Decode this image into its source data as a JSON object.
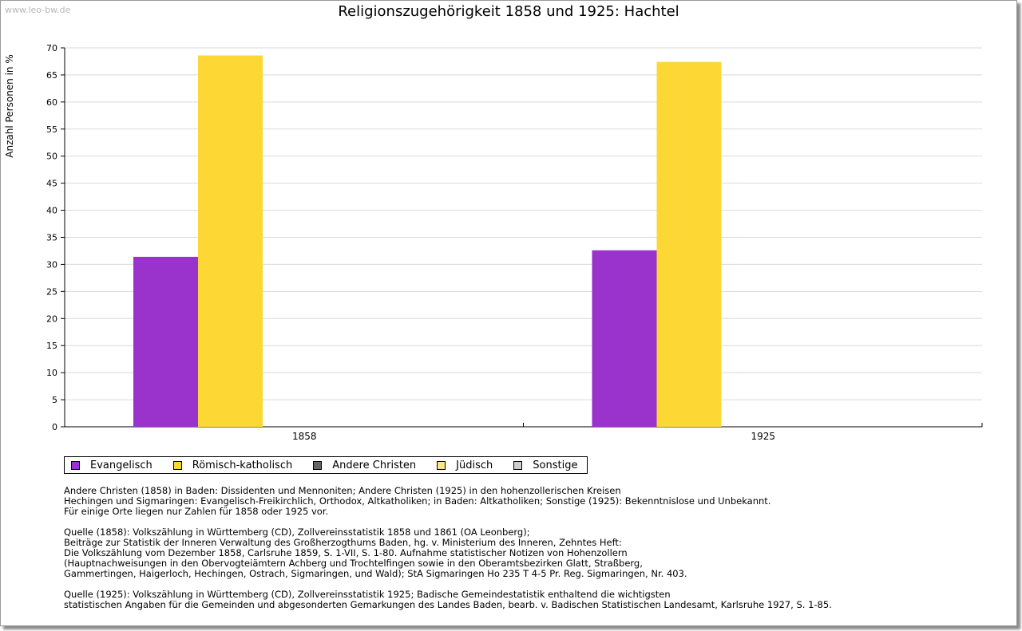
{
  "watermark": "www.leo-bw.de",
  "chart_data": {
    "type": "bar",
    "title": "Religionszugehörigkeit 1858 und 1925: Hachtel",
    "xlabel": "",
    "ylabel": "Anzahl Personen in %",
    "ylim": [
      0,
      70
    ],
    "yticks": [
      0,
      5,
      10,
      15,
      20,
      25,
      30,
      35,
      40,
      45,
      50,
      55,
      60,
      65,
      70
    ],
    "categories": [
      "1858",
      "1925"
    ],
    "series": [
      {
        "name": "Evangelisch",
        "color": "#9933cc",
        "values": [
          31.4,
          32.6
        ]
      },
      {
        "name": "Römisch-katholisch",
        "color": "#fdd835",
        "values": [
          68.6,
          67.4
        ]
      },
      {
        "name": "Andere Christen",
        "color": "#666666",
        "values": [
          0,
          0
        ]
      },
      {
        "name": "Jüdisch",
        "color": "#fde68a",
        "values": [
          0,
          0
        ]
      },
      {
        "name": "Sonstige",
        "color": "#cccccc",
        "values": [
          0,
          0
        ]
      }
    ],
    "grid": true,
    "legend_position": "bottom-left"
  },
  "notes": {
    "definitions": [
      "Andere Christen (1858) in Baden: Dissidenten und Mennoniten; Andere Christen (1925) in den hohenzollerischen Kreisen",
      "Hechingen und Sigmaringen: Evangelisch-Freikirchlich, Orthodox, Altkatholiken; in Baden: Altkatholiken; Sonstige (1925): Bekenntnislose und Unbekannt.",
      "Für einige Orte liegen nur Zahlen für 1858 oder 1925 vor."
    ],
    "source_1858": [
      "Quelle (1858): Volkszählung in Württemberg (CD), Zollvereinsstatistik 1858 und 1861 (OA Leonberg);",
      "Beiträge zur Statistik der Inneren Verwaltung des Großherzogthums Baden, hg. v. Ministerium des Inneren, Zehntes Heft:",
      "Die Volkszählung vom Dezember 1858, Carlsruhe 1859, S. 1-VII, S. 1-80. Aufnahme statistischer Notizen von Hohenzollern",
      "(Hauptnachweisungen in den Obervogteiämtern Achberg und Trochtelfingen sowie in den Oberamtsbezirken Glatt, Straßberg,",
      "Gammertingen, Haigerloch, Hechingen, Ostrach, Sigmaringen, und Wald); StA Sigmaringen Ho 235 T 4-5 Pr. Reg. Sigmaringen, Nr. 403."
    ],
    "source_1925": [
      "Quelle (1925): Volkszählung in Württemberg (CD), Zollvereinsstatistik 1925; Badische Gemeindestatistik enthaltend die wichtigsten",
      "statistischen Angaben für die Gemeinden und abgesonderten Gemarkungen des Landes Baden, bearb. v. Badischen Statistischen Landesamt, Karlsruhe 1927, S. 1-85."
    ]
  }
}
